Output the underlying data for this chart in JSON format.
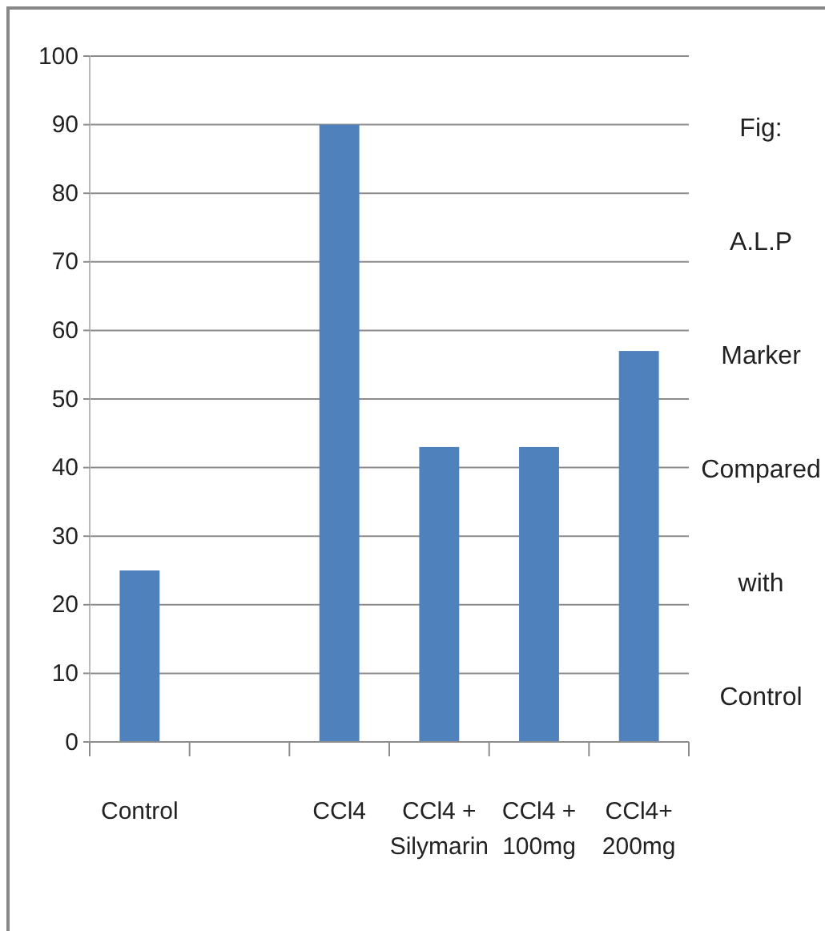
{
  "chart_data": {
    "type": "bar",
    "title": "Fig: A.L.P Marker Compared with Control",
    "categories": [
      "Control",
      null,
      "CCl4",
      "CCl4 + Silymarin",
      "CCl4 + 100mg",
      "CCl4+ 200mg"
    ],
    "values": [
      25,
      null,
      90,
      43,
      43,
      57
    ],
    "color": "#4f81bd",
    "ylim": [
      0,
      100
    ],
    "yticks": [
      0,
      10,
      20,
      30,
      40,
      50,
      60,
      70,
      80,
      90,
      100
    ],
    "grid": "y"
  }
}
